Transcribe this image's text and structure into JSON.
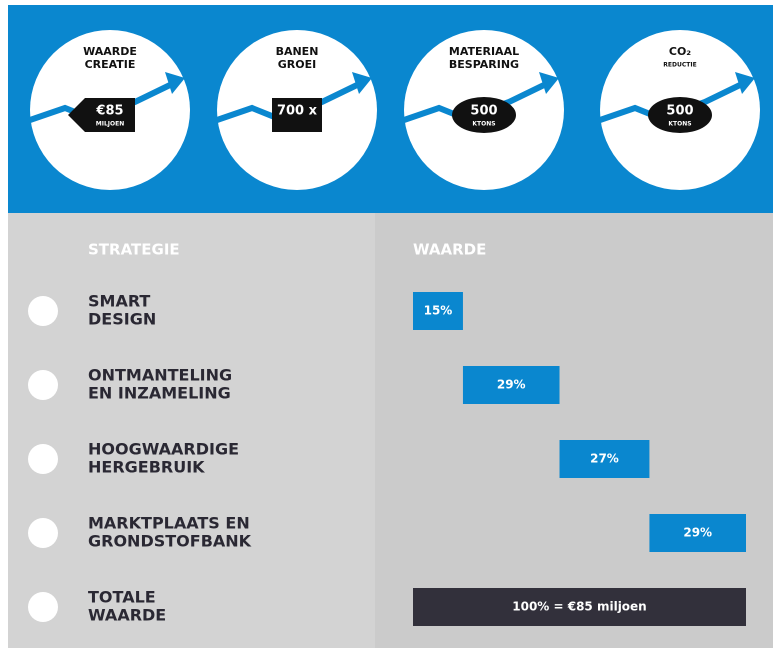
{
  "header": {
    "items": [
      {
        "title": [
          "WAARDE",
          "CREATIE"
        ],
        "figure": "€85",
        "unit": "MILJOEN"
      },
      {
        "title": [
          "BANEN",
          "GROEI"
        ],
        "figure": "700 x",
        "unit": null
      },
      {
        "title": [
          "MATERIAAL",
          "BESPARING"
        ],
        "figure": "500",
        "unit": "KTONS"
      },
      {
        "title": [
          "CO₂",
          "REDUCTIE"
        ],
        "figure": "500",
        "unit": "KTONS"
      }
    ]
  },
  "chart_data": {
    "type": "waterfall",
    "column_headers": [
      "STRATEGIE",
      "WAARDE"
    ],
    "categories": [
      [
        "SMART",
        "DESIGN"
      ],
      [
        "ONTMANTELING",
        "EN INZAMELING"
      ],
      [
        "HOOGWAARDIGE",
        "HERGEBRUIK"
      ],
      [
        "MARKTPLAATS EN",
        "GRONDSTOFBANK"
      ]
    ],
    "values": [
      15,
      29,
      27,
      29
    ],
    "value_labels": [
      "15%",
      "29%",
      "27%",
      "29%"
    ],
    "color": "#0a87cf",
    "total": {
      "category": [
        "TOTALE",
        "WAARDE"
      ],
      "value": 100,
      "value_label": "100% = €85 miljoen",
      "color": "#32303b"
    }
  }
}
